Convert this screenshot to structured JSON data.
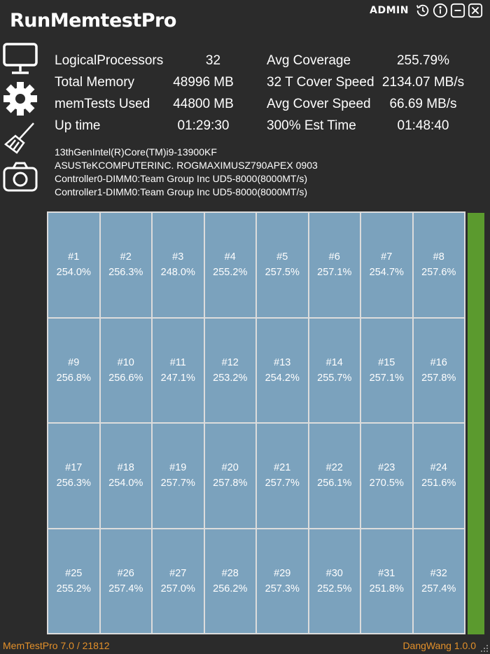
{
  "app": {
    "title": "RunMemtestPro",
    "admin_label": "ADMIN",
    "controls": [
      "history-icon",
      "info-icon",
      "minimize-icon",
      "close-icon"
    ]
  },
  "sidebar": {
    "icons": [
      "monitor-icon",
      "gear-icon",
      "broom-icon",
      "camera-icon"
    ]
  },
  "stats": {
    "rows": [
      {
        "label": "LogicalProcessors",
        "value": "32",
        "label2": "Avg Coverage",
        "value2": "255.79%"
      },
      {
        "label": "Total Memory",
        "value": "48996 MB",
        "label2": "32 T Cover Speed",
        "value2": "2134.07 MB/s"
      },
      {
        "label": "memTests Used",
        "value": "44800 MB",
        "label2": "Avg Cover Speed",
        "value2": "66.69 MB/s"
      },
      {
        "label": "Up time",
        "value": "01:29:30",
        "label2": "300% Est Time",
        "value2": "01:48:40"
      }
    ]
  },
  "sysinfo": [
    "13thGenIntel(R)Core(TM)i9-13900KF",
    "ASUSTeKCOMPUTERINC. ROGMAXIMUSZ790APEX 0903",
    "Controller0-DIMM0:Team Group Inc UD5-8000(8000MT/s)",
    "Controller1-DIMM0:Team Group Inc UD5-8000(8000MT/s)"
  ],
  "threads": [
    {
      "id": "#1",
      "pct": "254.0%"
    },
    {
      "id": "#2",
      "pct": "256.3%"
    },
    {
      "id": "#3",
      "pct": "248.0%"
    },
    {
      "id": "#4",
      "pct": "255.2%"
    },
    {
      "id": "#5",
      "pct": "257.5%"
    },
    {
      "id": "#6",
      "pct": "257.1%"
    },
    {
      "id": "#7",
      "pct": "254.7%"
    },
    {
      "id": "#8",
      "pct": "257.6%"
    },
    {
      "id": "#9",
      "pct": "256.8%"
    },
    {
      "id": "#10",
      "pct": "256.6%"
    },
    {
      "id": "#11",
      "pct": "247.1%"
    },
    {
      "id": "#12",
      "pct": "253.2%"
    },
    {
      "id": "#13",
      "pct": "254.2%"
    },
    {
      "id": "#14",
      "pct": "255.7%"
    },
    {
      "id": "#15",
      "pct": "257.1%"
    },
    {
      "id": "#16",
      "pct": "257.8%"
    },
    {
      "id": "#17",
      "pct": "256.3%"
    },
    {
      "id": "#18",
      "pct": "254.0%"
    },
    {
      "id": "#19",
      "pct": "257.7%"
    },
    {
      "id": "#20",
      "pct": "257.8%"
    },
    {
      "id": "#21",
      "pct": "257.7%"
    },
    {
      "id": "#22",
      "pct": "256.1%"
    },
    {
      "id": "#23",
      "pct": "270.5%"
    },
    {
      "id": "#24",
      "pct": "251.6%"
    },
    {
      "id": "#25",
      "pct": "255.2%"
    },
    {
      "id": "#26",
      "pct": "257.4%"
    },
    {
      "id": "#27",
      "pct": "257.0%"
    },
    {
      "id": "#28",
      "pct": "256.2%"
    },
    {
      "id": "#29",
      "pct": "257.3%"
    },
    {
      "id": "#30",
      "pct": "252.5%"
    },
    {
      "id": "#31",
      "pct": "251.8%"
    },
    {
      "id": "#32",
      "pct": "257.4%"
    }
  ],
  "progress": {
    "fraction": 1.0,
    "color": "#5b9a2e"
  },
  "colors": {
    "cell": "#7ba2bd",
    "footer": "#e3902a",
    "background": "#2b2b2b"
  },
  "footer": {
    "left": "MemTestPro 7.0 / 21812",
    "right": "DangWang 1.0.0"
  }
}
